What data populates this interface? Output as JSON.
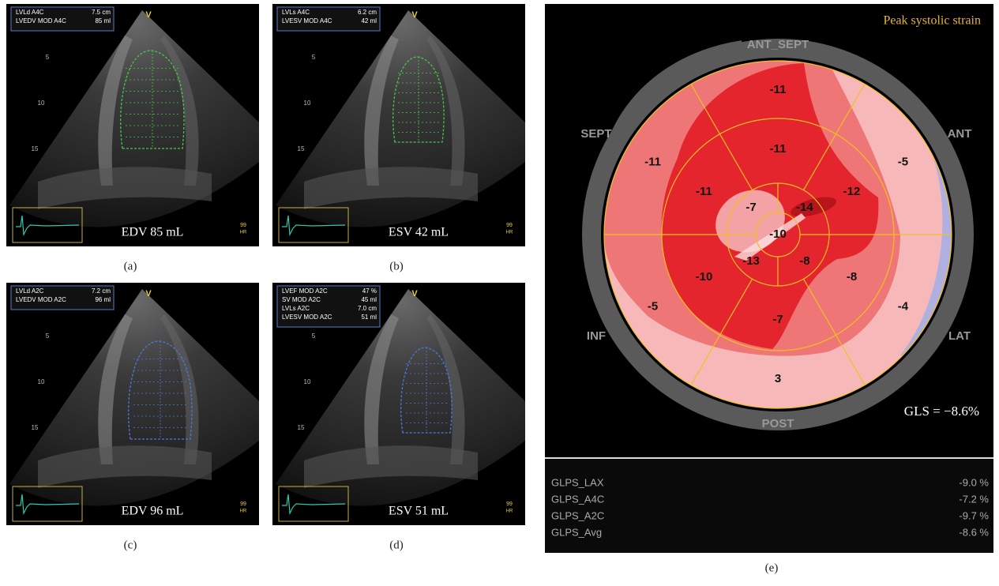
{
  "panels": [
    {
      "label": "(a)",
      "caption": "EDV 85 mL",
      "overlay": [
        [
          "LVLd A4C",
          "7.5 cm"
        ],
        [
          "LVEDV MOD A4C",
          "85 ml"
        ]
      ],
      "marker": "V",
      "depths": [
        "5",
        "10",
        "15"
      ],
      "heart_rate": "99",
      "hr_unit": "HR",
      "contour_color": "#46c846"
    },
    {
      "label": "(b)",
      "caption": "ESV 42 mL",
      "overlay": [
        [
          "LVLs A4C",
          "6.2 cm"
        ],
        [
          "LVESV MOD A4C",
          "42 ml"
        ]
      ],
      "marker": "V",
      "depths": [
        "5",
        "10",
        "15"
      ],
      "heart_rate": "99",
      "hr_unit": "HR",
      "contour_color": "#46c846"
    },
    {
      "label": "(c)",
      "caption": "EDV 96 mL",
      "overlay": [
        [
          "LVLd A2C",
          "7.2 cm"
        ],
        [
          "LVEDV MOD A2C",
          "96 ml"
        ]
      ],
      "marker": "V",
      "depths": [
        "5",
        "10",
        "15"
      ],
      "heart_rate": "99",
      "hr_unit": "HR",
      "contour_color": "#4a78e0"
    },
    {
      "label": "(d)",
      "caption": "ESV 51 mL",
      "overlay": [
        [
          "LVEF MOD A2C",
          "47 %"
        ],
        [
          "SV MOD A2C",
          "45 ml"
        ],
        [
          "LVLs A2C",
          "7.0 cm"
        ],
        [
          "LVESV MOD A2C",
          "51 ml"
        ]
      ],
      "marker": "V",
      "depths": [
        "5",
        "10",
        "15"
      ],
      "heart_rate": "99",
      "hr_unit": "HR",
      "contour_color": "#4a78e0"
    }
  ],
  "bullseye": {
    "label": "(e)",
    "title": "Peak systolic strain",
    "walls": {
      "top": "ANT_SEPT",
      "upper_right": "ANT",
      "lower_right": "LAT",
      "bottom": "POST",
      "lower_left": "INF",
      "upper_left": "SEPT"
    },
    "basal": [
      "-11",
      "-5",
      "-4",
      "3",
      "-5",
      "-11"
    ],
    "mid": [
      "-11",
      "-12",
      "-8",
      "-7",
      "-10",
      "-11"
    ],
    "apical": [
      "-14",
      "-8",
      "-13",
      "-7"
    ],
    "apex": "-10",
    "gls": "GLS = −8.6%",
    "table": [
      [
        "GLPS_LAX",
        "-9.0 %"
      ],
      [
        "GLPS_A4C",
        "-7.2 %"
      ],
      [
        "GLPS_A2C",
        "-9.7 %"
      ],
      [
        "GLPS_Avg",
        "-8.6 %"
      ]
    ]
  }
}
